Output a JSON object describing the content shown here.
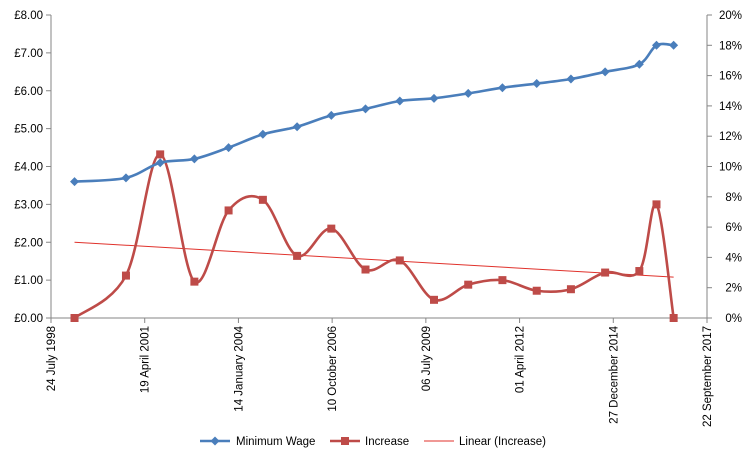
{
  "chart_data": {
    "type": "line",
    "title": "",
    "xlabel": "",
    "ylabel": "",
    "x_axis": {
      "type": "date",
      "range": [
        "1998-07-24",
        "2017-09-22"
      ],
      "tick_labels": [
        "24 July 1998",
        "19 April 2001",
        "14 January 2004",
        "10 October 2006",
        "06 July 2009",
        "01 April 2012",
        "27 December 2014",
        "22 September 2017"
      ],
      "tick_dates": [
        "1998-07-24",
        "2001-04-19",
        "2004-01-14",
        "2006-10-10",
        "2009-07-06",
        "2012-04-01",
        "2014-12-27",
        "2017-09-22"
      ]
    },
    "y_axis_left": {
      "range": [
        0,
        8
      ],
      "tick_values": [
        0,
        1,
        2,
        3,
        4,
        5,
        6,
        7,
        8
      ],
      "tick_labels": [
        "£0.00",
        "£1.00",
        "£2.00",
        "£3.00",
        "£4.00",
        "£5.00",
        "£6.00",
        "£7.00",
        "£8.00"
      ]
    },
    "y_axis_right": {
      "range": [
        0,
        20
      ],
      "tick_values": [
        0,
        2,
        4,
        6,
        8,
        10,
        12,
        14,
        16,
        18,
        20
      ],
      "tick_labels": [
        "0%",
        "2%",
        "4%",
        "6%",
        "8%",
        "10%",
        "12%",
        "14%",
        "16%",
        "18%",
        "20%"
      ]
    },
    "grid": false,
    "legend": "bottom",
    "series": [
      {
        "name": "Minimum Wage",
        "axis": "left",
        "color": "#4a7ebb",
        "marker": "diamond",
        "smooth": true,
        "points": [
          {
            "x": "1999-04-01",
            "y": 3.6
          },
          {
            "x": "2000-10-01",
            "y": 3.7
          },
          {
            "x": "2001-10-01",
            "y": 4.1
          },
          {
            "x": "2002-10-01",
            "y": 4.2
          },
          {
            "x": "2003-10-01",
            "y": 4.5
          },
          {
            "x": "2004-10-01",
            "y": 4.85
          },
          {
            "x": "2005-10-01",
            "y": 5.05
          },
          {
            "x": "2006-10-01",
            "y": 5.35
          },
          {
            "x": "2007-10-01",
            "y": 5.52
          },
          {
            "x": "2008-10-01",
            "y": 5.73
          },
          {
            "x": "2009-10-01",
            "y": 5.8
          },
          {
            "x": "2010-10-01",
            "y": 5.93
          },
          {
            "x": "2011-10-01",
            "y": 6.08
          },
          {
            "x": "2012-10-01",
            "y": 6.19
          },
          {
            "x": "2013-10-01",
            "y": 6.31
          },
          {
            "x": "2014-10-01",
            "y": 6.5
          },
          {
            "x": "2015-10-01",
            "y": 6.7
          },
          {
            "x": "2016-04-01",
            "y": 7.2
          },
          {
            "x": "2016-10-01",
            "y": 7.2
          }
        ]
      },
      {
        "name": "Increase",
        "axis": "right",
        "color": "#be4b48",
        "marker": "square",
        "smooth": true,
        "points": [
          {
            "x": "1999-04-01",
            "y": 0.0
          },
          {
            "x": "2000-10-01",
            "y": 2.8
          },
          {
            "x": "2001-10-01",
            "y": 10.8
          },
          {
            "x": "2002-10-01",
            "y": 2.4
          },
          {
            "x": "2003-10-01",
            "y": 7.1
          },
          {
            "x": "2004-10-01",
            "y": 7.8
          },
          {
            "x": "2005-10-01",
            "y": 4.1
          },
          {
            "x": "2006-10-01",
            "y": 5.9
          },
          {
            "x": "2007-10-01",
            "y": 3.2
          },
          {
            "x": "2008-10-01",
            "y": 3.8
          },
          {
            "x": "2009-10-01",
            "y": 1.2
          },
          {
            "x": "2010-10-01",
            "y": 2.2
          },
          {
            "x": "2011-10-01",
            "y": 2.5
          },
          {
            "x": "2012-10-01",
            "y": 1.8
          },
          {
            "x": "2013-10-01",
            "y": 1.9
          },
          {
            "x": "2014-10-01",
            "y": 3.0
          },
          {
            "x": "2015-10-01",
            "y": 3.1
          },
          {
            "x": "2016-04-01",
            "y": 7.5
          },
          {
            "x": "2016-10-01",
            "y": 0.0
          }
        ]
      },
      {
        "name": "Linear (Increase)",
        "axis": "right",
        "color": "#e0312b",
        "marker": "none",
        "smooth": false,
        "points": [
          {
            "x": "1999-04-01",
            "y": 5.0
          },
          {
            "x": "2016-10-01",
            "y": 2.7
          }
        ]
      }
    ]
  }
}
